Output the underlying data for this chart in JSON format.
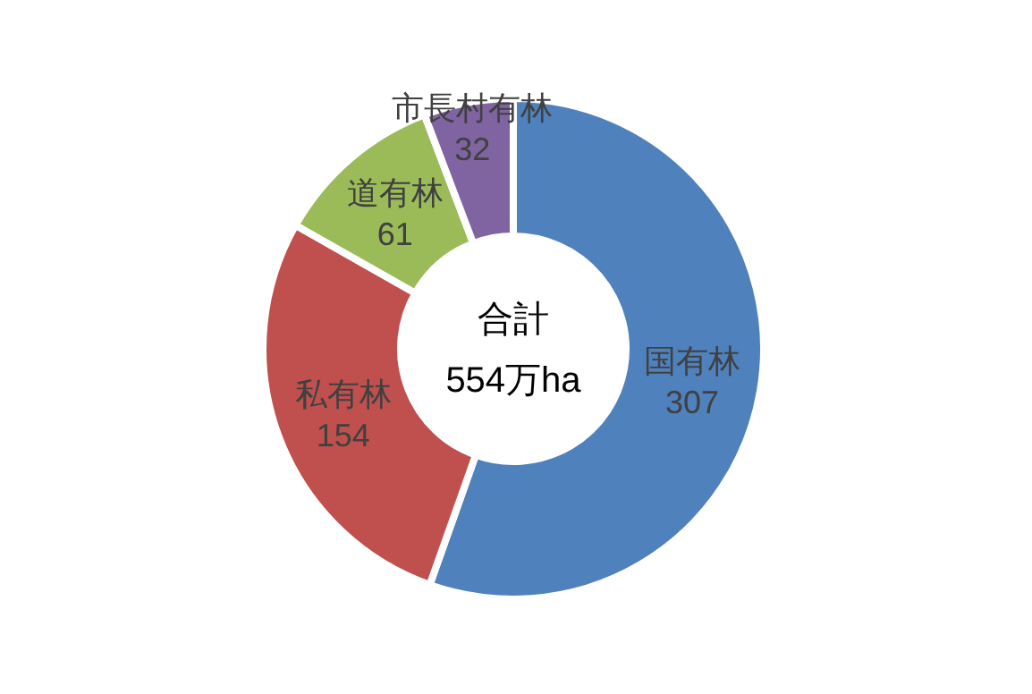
{
  "chart_data": {
    "type": "donut",
    "categories": [
      "国有林",
      "私有林",
      "道有林",
      "市長村有林"
    ],
    "values": [
      307,
      154,
      61,
      32
    ],
    "colors": [
      "#4f81bd",
      "#c0504d",
      "#9bbb59",
      "#8064a2"
    ],
    "data_labels": true,
    "annotations": [
      "合計",
      "554万ha"
    ]
  }
}
